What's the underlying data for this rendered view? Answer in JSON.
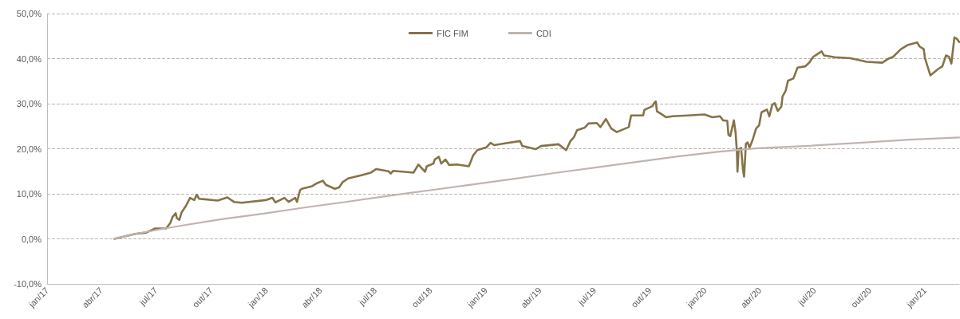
{
  "chart_data": {
    "type": "line",
    "xlim": [
      "2017-01-01",
      "2021-02-27"
    ],
    "xticks": [
      {
        "value": "2017-01-01",
        "label": "jan/17"
      },
      {
        "value": "2017-04-01",
        "label": "abr/17"
      },
      {
        "value": "2017-07-01",
        "label": "jul/17"
      },
      {
        "value": "2017-10-01",
        "label": "out/17"
      },
      {
        "value": "2018-01-01",
        "label": "jan/18"
      },
      {
        "value": "2018-04-01",
        "label": "abr/18"
      },
      {
        "value": "2018-07-01",
        "label": "jul/18"
      },
      {
        "value": "2018-10-01",
        "label": "out/18"
      },
      {
        "value": "2019-01-01",
        "label": "jan/19"
      },
      {
        "value": "2019-04-01",
        "label": "abr/19"
      },
      {
        "value": "2019-07-01",
        "label": "jul/19"
      },
      {
        "value": "2019-10-01",
        "label": "out/19"
      },
      {
        "value": "2020-01-01",
        "label": "jan/20"
      },
      {
        "value": "2020-04-01",
        "label": "abr/20"
      },
      {
        "value": "2020-07-01",
        "label": "jul/20"
      },
      {
        "value": "2020-10-01",
        "label": "out/20"
      },
      {
        "value": "2021-01-01",
        "label": "jan/21"
      }
    ],
    "ylim": [
      -10,
      50
    ],
    "yticks": [
      {
        "value": -10,
        "label": "-10,0%"
      },
      {
        "value": 0,
        "label": "0,0%"
      },
      {
        "value": 10,
        "label": "10,0%"
      },
      {
        "value": 20,
        "label": "20,0%"
      },
      {
        "value": 30,
        "label": "30,0%"
      },
      {
        "value": 40,
        "label": "40,0%"
      },
      {
        "value": 50,
        "label": "50,0%"
      }
    ],
    "grid": "y",
    "legend": "top",
    "series": [
      {
        "name": "FIC FIM",
        "color": "#857348",
        "x": [
          "2017-04-23",
          "2017-05-28",
          "2017-06-15",
          "2017-06-30",
          "2017-07-18",
          "2017-07-25",
          "2017-07-29",
          "2017-08-03",
          "2017-08-05",
          "2017-08-09",
          "2017-08-13",
          "2017-08-20",
          "2017-08-27",
          "2017-09-03",
          "2017-09-07",
          "2017-09-11",
          "2017-10-12",
          "2017-10-28",
          "2017-11-08",
          "2017-11-21",
          "2017-12-31",
          "2018-01-11",
          "2018-01-16",
          "2018-01-31",
          "2018-02-07",
          "2018-02-18",
          "2018-02-21",
          "2018-02-26",
          "2018-03-01",
          "2018-03-18",
          "2018-03-27",
          "2018-04-05",
          "2018-04-10",
          "2018-04-25",
          "2018-05-02",
          "2018-05-08",
          "2018-05-17",
          "2018-06-08",
          "2018-06-24",
          "2018-07-03",
          "2018-07-23",
          "2018-07-27",
          "2018-07-31",
          "2018-09-03",
          "2018-09-11",
          "2018-09-22",
          "2018-09-25",
          "2018-10-06",
          "2018-10-08",
          "2018-10-15",
          "2018-10-19",
          "2018-10-26",
          "2018-11-01",
          "2018-11-14",
          "2018-12-04",
          "2018-12-11",
          "2018-12-18",
          "2019-01-02",
          "2019-01-09",
          "2019-01-15",
          "2019-02-02",
          "2019-02-27",
          "2019-03-03",
          "2019-03-25",
          "2019-04-03",
          "2019-05-02",
          "2019-05-15",
          "2019-05-22",
          "2019-05-28",
          "2019-06-02",
          "2019-06-15",
          "2019-06-21",
          "2019-07-05",
          "2019-07-11",
          "2019-07-20",
          "2019-07-25",
          "2019-07-29",
          "2019-08-07",
          "2019-08-27",
          "2019-08-31",
          "2019-09-20",
          "2019-09-22",
          "2019-10-06",
          "2019-10-08",
          "2019-10-11",
          "2019-10-13",
          "2019-10-19",
          "2019-10-28",
          "2019-11-08",
          "2019-12-04",
          "2019-12-31",
          "2020-01-13",
          "2020-01-26",
          "2020-01-31",
          "2020-02-07",
          "2020-02-09",
          "2020-02-12",
          "2020-02-18",
          "2020-02-21",
          "2020-02-23",
          "2020-02-24",
          "2020-02-26",
          "2020-03-01",
          "2020-03-04",
          "2020-03-06",
          "2020-03-09",
          "2020-03-12",
          "2020-03-15",
          "2020-03-20",
          "2020-03-26",
          "2020-03-31",
          "2020-04-04",
          "2020-04-13",
          "2020-04-17",
          "2020-04-22",
          "2020-04-26",
          "2020-05-01",
          "2020-05-07",
          "2020-05-09",
          "2020-05-14",
          "2020-05-18",
          "2020-05-27",
          "2020-06-03",
          "2020-06-16",
          "2020-06-23",
          "2020-06-29",
          "2020-07-06",
          "2020-07-13",
          "2020-07-17",
          "2020-08-04",
          "2020-08-30",
          "2020-09-26",
          "2020-10-22",
          "2020-10-31",
          "2020-11-09",
          "2020-11-22",
          "2020-12-03",
          "2020-12-19",
          "2020-12-23",
          "2020-12-30",
          "2021-01-01",
          "2021-01-06",
          "2021-01-10",
          "2021-01-23",
          "2021-01-30",
          "2021-02-05",
          "2021-02-10",
          "2021-02-14",
          "2021-02-19",
          "2021-02-23",
          "2021-02-27"
        ],
        "values": [
          0.0,
          1.1,
          1.4,
          2.3,
          2.3,
          3.5,
          4.9,
          5.7,
          4.6,
          4.2,
          5.9,
          7.3,
          9.1,
          8.6,
          9.8,
          8.9,
          8.5,
          9.2,
          8.2,
          8.0,
          8.6,
          9.1,
          8.1,
          9.1,
          8.2,
          9.1,
          8.2,
          10.8,
          11.1,
          11.7,
          12.4,
          12.9,
          12.0,
          11.1,
          11.4,
          12.6,
          13.4,
          14.1,
          14.7,
          15.5,
          15.0,
          14.5,
          15.1,
          14.7,
          16.5,
          14.9,
          16.1,
          16.7,
          17.6,
          18.2,
          16.7,
          17.6,
          16.4,
          16.5,
          16.1,
          18.5,
          19.7,
          20.3,
          21.3,
          20.8,
          21.2,
          21.7,
          20.6,
          19.9,
          20.6,
          21.0,
          19.7,
          21.7,
          22.6,
          24.1,
          24.7,
          25.6,
          25.7,
          24.8,
          26.6,
          25.4,
          24.5,
          23.7,
          24.8,
          27.4,
          27.4,
          28.6,
          29.5,
          30.1,
          30.5,
          28.3,
          27.8,
          27.0,
          27.2,
          27.4,
          27.6,
          27.0,
          27.2,
          26.3,
          26.2,
          23.1,
          22.8,
          26.3,
          23.4,
          19.3,
          14.9,
          19.9,
          20.2,
          15.5,
          13.8,
          21.1,
          21.4,
          20.2,
          21.9,
          24.5,
          25.2,
          28.1,
          28.7,
          27.2,
          29.8,
          30.1,
          28.4,
          29.3,
          31.6,
          32.8,
          35.1,
          35.6,
          38.0,
          38.3,
          39.2,
          40.4,
          41.0,
          41.6,
          40.7,
          40.3,
          40.1,
          39.3,
          39.1,
          39.9,
          40.4,
          42.1,
          43.0,
          43.6,
          42.7,
          42.1,
          40.1,
          38.0,
          36.3,
          37.7,
          38.3,
          40.7,
          40.4,
          38.9,
          44.7,
          44.4,
          43.7
        ]
      },
      {
        "name": "CDI",
        "color": "#c0b4b0",
        "x": [
          "2017-04-23",
          "2017-05-28",
          "2017-07-16",
          "2017-08-20",
          "2017-10-21",
          "2017-12-27",
          "2018-03-03",
          "2018-05-08",
          "2018-07-20",
          "2018-10-01",
          "2018-12-07",
          "2019-02-11",
          "2019-04-25",
          "2019-07-07",
          "2019-09-11",
          "2019-11-17",
          "2020-01-22",
          "2020-03-28",
          "2020-06-16",
          "2020-09-13",
          "2020-12-06",
          "2021-02-27"
        ],
        "values": [
          0.0,
          1.1,
          2.3,
          3.1,
          4.4,
          5.6,
          6.9,
          8.1,
          9.5,
          10.8,
          12.0,
          13.2,
          14.6,
          15.9,
          17.1,
          18.3,
          19.3,
          20.1,
          20.6,
          21.3,
          22.0,
          22.5
        ]
      }
    ]
  }
}
